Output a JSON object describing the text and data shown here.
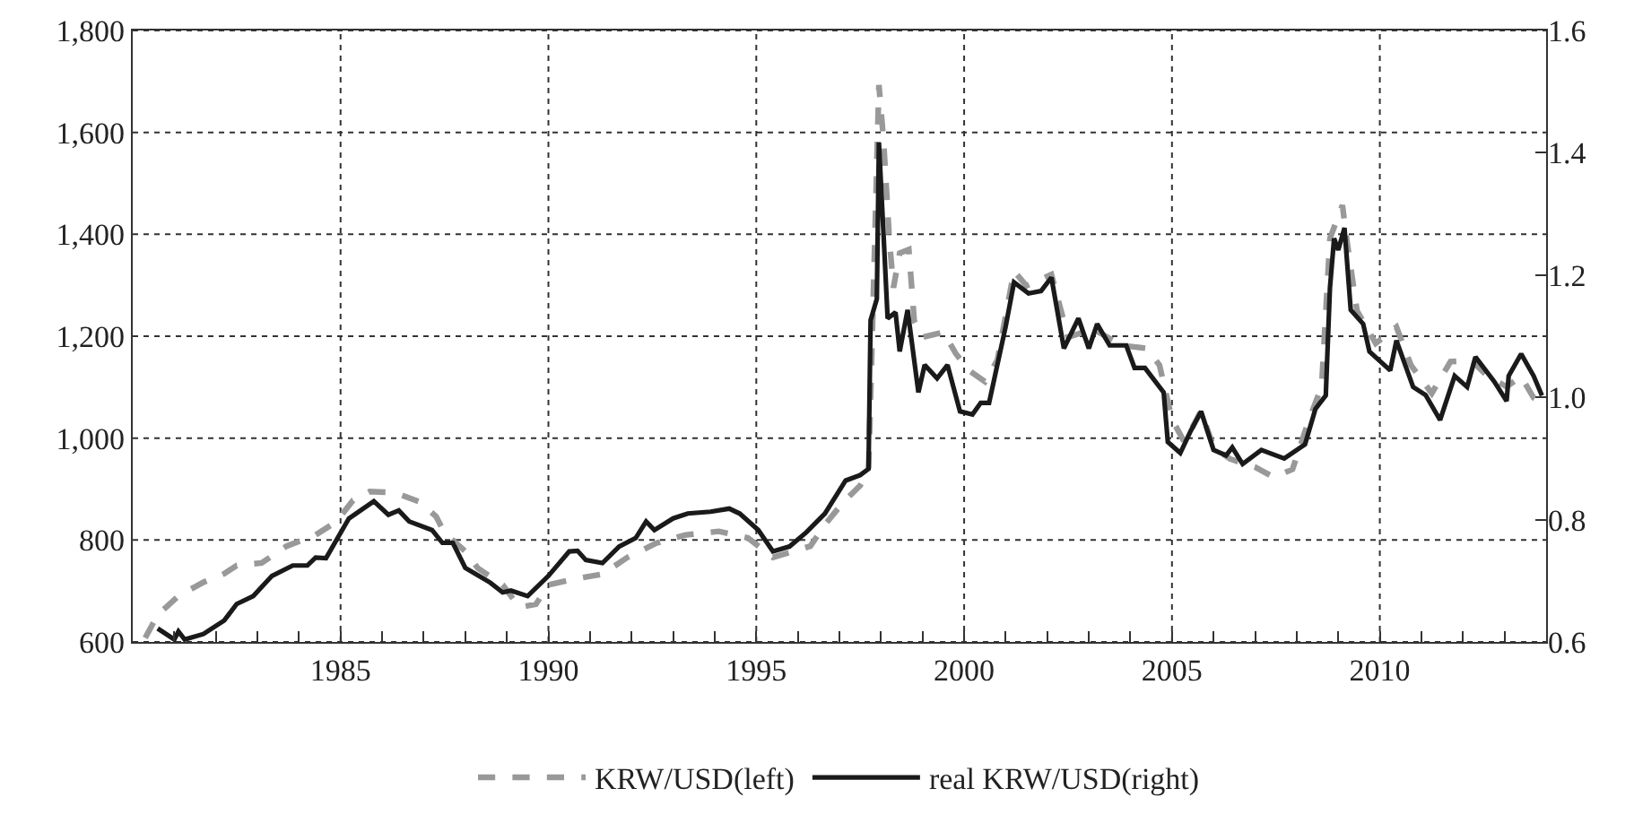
{
  "chart_data": {
    "type": "line",
    "xlim": [
      1980,
      2014
    ],
    "xticks": [
      {
        "value": 1981,
        "label": null
      },
      {
        "value": 1982,
        "label": null
      },
      {
        "value": 1983,
        "label": null
      },
      {
        "value": 1984,
        "label": null
      },
      1985,
      {
        "value": 1986,
        "label": null
      },
      {
        "value": 1987,
        "label": null
      },
      {
        "value": 1988,
        "label": null
      },
      {
        "value": 1989,
        "label": null
      },
      1990,
      {
        "value": 1991,
        "label": null
      },
      {
        "value": 1992,
        "label": null
      },
      {
        "value": 1993,
        "label": null
      },
      {
        "value": 1994,
        "label": null
      },
      1995,
      {
        "value": 1996,
        "label": null
      },
      {
        "value": 1997,
        "label": null
      },
      {
        "value": 1998,
        "label": null
      },
      {
        "value": 1999,
        "label": null
      },
      2000,
      {
        "value": 2001,
        "label": null
      },
      {
        "value": 2002,
        "label": null
      },
      {
        "value": 2003,
        "label": null
      },
      {
        "value": 2004,
        "label": null
      },
      2005,
      {
        "value": 2006,
        "label": null
      },
      {
        "value": 2007,
        "label": null
      },
      {
        "value": 2008,
        "label": null
      },
      {
        "value": 2009,
        "label": null
      },
      2010,
      {
        "value": 2011,
        "label": null
      },
      {
        "value": 2012,
        "label": null
      },
      {
        "value": 2013,
        "label": null
      }
    ],
    "ylim": [
      600,
      1800
    ],
    "yticks": [
      600,
      800,
      {
        "value": 1000,
        "label": "1,000"
      },
      {
        "value": 1200,
        "label": "1,200"
      },
      {
        "value": 1400,
        "label": "1,400"
      },
      {
        "value": 1600,
        "label": "1,600"
      },
      {
        "value": 1800,
        "label": "1,800"
      }
    ],
    "y2lim": [
      0.6,
      1.6
    ],
    "y2ticks": [
      0.6,
      0.8,
      {
        "value": 1.0,
        "label": "1.0"
      },
      1.2,
      1.4,
      1.6
    ],
    "grid": true,
    "legend": "bottom",
    "series": [
      {
        "name": "KRW/USD(left)",
        "color": "#999999",
        "line_style": "dashed",
        "axis": "y",
        "x": [
          1980.3,
          1980.6,
          1981.1,
          1981.7,
          1982.2,
          1982.5,
          1983.1,
          1983.7,
          1984.4,
          1984.9,
          1985.3,
          1985.7,
          1986.3,
          1986.9,
          1987.3,
          1987.5,
          1988.0,
          1988.3,
          1988.9,
          1989.3,
          1989.7,
          1990.0,
          1990.6,
          1991.3,
          1991.9,
          1992.6,
          1993.3,
          1994.1,
          1994.8,
          1995.4,
          1995.9,
          1996.3,
          1996.65,
          1997.1,
          1997.5,
          1997.7,
          1997.8,
          1997.95,
          1998.06,
          1998.2,
          1998.3,
          1998.45,
          1998.67,
          1998.8,
          1999.0,
          1999.5,
          1999.8,
          2000.1,
          2000.5,
          2000.8,
          2001.2,
          2001.5,
          2002.1,
          2002.5,
          2003.1,
          2003.8,
          2004.4,
          2004.7,
          2005.0,
          2005.3,
          2005.7,
          2006.0,
          2006.4,
          2007.0,
          2007.45,
          2007.9,
          2008.3,
          2008.6,
          2008.8,
          2009.1,
          2009.2,
          2009.45,
          2009.9,
          2010.4,
          2010.75,
          2011.25,
          2011.7,
          2012.2,
          2012.6,
          2013.05,
          2013.4,
          2013.7,
          2013.9
        ],
        "values": [
          608,
          653,
          690,
          717,
          734,
          750,
          755,
          788,
          810,
          836,
          878,
          895,
          893,
          875,
          846,
          814,
          778,
          745,
          712,
          668,
          674,
          712,
          723,
          733,
          766,
          794,
          810,
          817,
          804,
          766,
          778,
          788,
          830,
          875,
          907,
          933,
          1230,
          1693,
          1586,
          1392,
          1295,
          1363,
          1370,
          1230,
          1198,
          1208,
          1166,
          1134,
          1111,
          1153,
          1328,
          1299,
          1321,
          1198,
          1214,
          1182,
          1176,
          1143,
          1037,
          992,
          1053,
          982,
          959,
          943,
          923,
          939,
          1037,
          1101,
          1392,
          1457,
          1392,
          1250,
          1186,
          1218,
          1143,
          1088,
          1150,
          1153,
          1121,
          1101,
          1121,
          1079,
          1069
        ]
      },
      {
        "name": "real KRW/USD(right)",
        "color": "#1a1a1a",
        "line_style": "solid",
        "axis": "y2",
        "x": [
          1980.6,
          1981.0,
          1981.1,
          1981.25,
          1981.7,
          1982.2,
          1982.5,
          1982.9,
          1983.35,
          1983.85,
          1984.2,
          1984.4,
          1984.65,
          1985.2,
          1985.8,
          1986.15,
          1986.4,
          1986.65,
          1987.2,
          1987.45,
          1987.7,
          1988.0,
          1988.25,
          1988.6,
          1988.9,
          1989.1,
          1989.5,
          1990.0,
          1990.5,
          1990.7,
          1990.9,
          1991.3,
          1991.7,
          1992.1,
          1992.35,
          1992.55,
          1993.0,
          1993.35,
          1993.9,
          1994.35,
          1994.6,
          1995.05,
          1995.4,
          1995.8,
          1996.2,
          1996.65,
          1997.15,
          1997.5,
          1997.7,
          1997.75,
          1997.9,
          1997.95,
          1998.06,
          1998.16,
          1998.35,
          1998.45,
          1998.64,
          1998.9,
          1999.05,
          1999.35,
          1999.6,
          1999.9,
          2000.2,
          2000.4,
          2000.6,
          2001.0,
          2001.2,
          2001.55,
          2001.85,
          2002.1,
          2002.4,
          2002.75,
          2003.0,
          2003.2,
          2003.5,
          2003.9,
          2004.1,
          2004.35,
          2004.8,
          2004.9,
          2005.2,
          2005.45,
          2005.7,
          2006.0,
          2006.3,
          2006.45,
          2006.7,
          2007.15,
          2007.7,
          2008.2,
          2008.45,
          2008.7,
          2008.8,
          2008.9,
          2009.0,
          2009.15,
          2009.3,
          2009.6,
          2009.75,
          2010.25,
          2010.4,
          2010.8,
          2011.1,
          2011.45,
          2011.8,
          2012.1,
          2012.3,
          2012.75,
          2013.05,
          2013.1,
          2013.4,
          2013.7,
          2013.9
        ],
        "values": [
          0.622,
          0.604,
          0.617,
          0.604,
          0.613,
          0.635,
          0.662,
          0.675,
          0.708,
          0.725,
          0.725,
          0.738,
          0.737,
          0.802,
          0.83,
          0.808,
          0.815,
          0.797,
          0.783,
          0.762,
          0.762,
          0.721,
          0.711,
          0.697,
          0.681,
          0.684,
          0.675,
          0.708,
          0.748,
          0.749,
          0.734,
          0.729,
          0.756,
          0.77,
          0.797,
          0.783,
          0.802,
          0.81,
          0.813,
          0.818,
          0.81,
          0.783,
          0.748,
          0.756,
          0.779,
          0.81,
          0.864,
          0.873,
          0.883,
          1.126,
          1.161,
          1.417,
          1.268,
          1.129,
          1.139,
          1.075,
          1.143,
          1.008,
          1.053,
          1.031,
          1.053,
          0.977,
          0.972,
          0.991,
          0.991,
          1.116,
          1.188,
          1.17,
          1.174,
          1.196,
          1.08,
          1.129,
          1.08,
          1.12,
          1.085,
          1.085,
          1.048,
          1.048,
          1.008,
          0.927,
          0.909,
          0.945,
          0.977,
          0.914,
          0.905,
          0.918,
          0.891,
          0.914,
          0.9,
          0.923,
          0.981,
          1.003,
          1.179,
          1.26,
          1.241,
          1.277,
          1.143,
          1.12,
          1.075,
          1.044,
          1.093,
          1.017,
          1.004,
          0.963,
          1.035,
          1.017,
          1.066,
          1.026,
          0.994,
          1.035,
          1.071,
          1.035,
          1.003
        ]
      }
    ]
  }
}
